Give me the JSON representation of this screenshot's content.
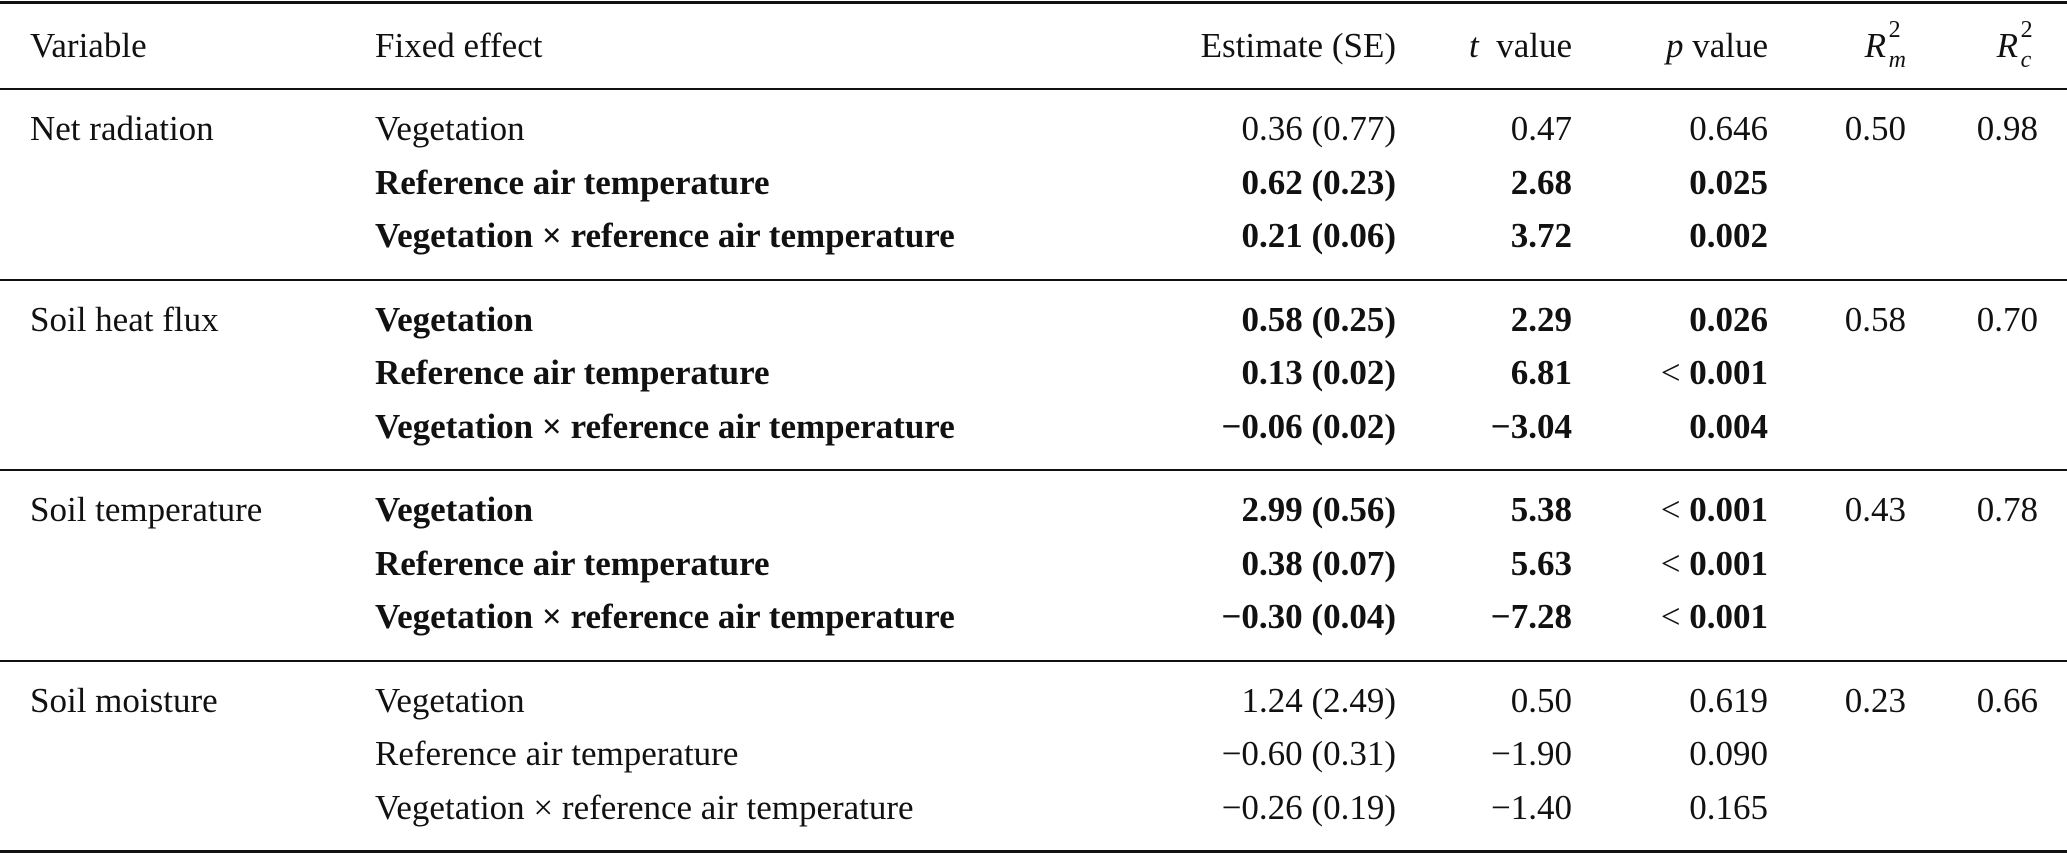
{
  "header": {
    "variable": "Variable",
    "fixed_effect": "Fixed effect",
    "estimate": "Estimate (SE)",
    "t_symbol": "t",
    "t_label": "value",
    "p_symbol": "p",
    "p_label": "value",
    "rm_base": "R",
    "rm_sup": "2",
    "rm_sub": "m",
    "rc_base": "R",
    "rc_sup": "2",
    "rc_sub": "c"
  },
  "groups": [
    {
      "variable": "Net radiation",
      "rm": "0.50",
      "rc": "0.98",
      "rows": [
        {
          "effect": "Vegetation",
          "estimate": "0.36 (0.77)",
          "t": "0.47",
          "p_prefix": "",
          "p": "0.646",
          "bold": false
        },
        {
          "effect": "Reference air temperature",
          "estimate": "0.62 (0.23)",
          "t": "2.68",
          "p_prefix": "",
          "p": "0.025",
          "bold": true
        },
        {
          "effect": "Vegetation × reference air temperature",
          "estimate": "0.21 (0.06)",
          "t": "3.72",
          "p_prefix": "",
          "p": "0.002",
          "bold": true
        }
      ]
    },
    {
      "variable": "Soil heat flux",
      "rm": "0.58",
      "rc": "0.70",
      "rows": [
        {
          "effect": "Vegetation",
          "estimate": "0.58 (0.25)",
          "t": "2.29",
          "p_prefix": "",
          "p": "0.026",
          "bold": true
        },
        {
          "effect": "Reference air temperature",
          "estimate": "0.13 (0.02)",
          "t": "6.81",
          "p_prefix": "< ",
          "p": "0.001",
          "bold": true
        },
        {
          "effect": "Vegetation × reference air temperature",
          "estimate": "−0.06 (0.02)",
          "t": "−3.04",
          "p_prefix": "",
          "p": "0.004",
          "bold": true
        }
      ]
    },
    {
      "variable": "Soil temperature",
      "rm": "0.43",
      "rc": "0.78",
      "rows": [
        {
          "effect": "Vegetation",
          "estimate": "2.99 (0.56)",
          "t": "5.38",
          "p_prefix": "< ",
          "p": "0.001",
          "bold": true
        },
        {
          "effect": "Reference air temperature",
          "estimate": "0.38 (0.07)",
          "t": "5.63",
          "p_prefix": "< ",
          "p": "0.001",
          "bold": true
        },
        {
          "effect": "Vegetation × reference air temperature",
          "estimate": "−0.30 (0.04)",
          "t": "−7.28",
          "p_prefix": "< ",
          "p": "0.001",
          "bold": true
        }
      ]
    },
    {
      "variable": "Soil moisture",
      "rm": "0.23",
      "rc": "0.66",
      "rows": [
        {
          "effect": "Vegetation",
          "estimate": "1.24 (2.49)",
          "t": "0.50",
          "p_prefix": "",
          "p": "0.619",
          "bold": false
        },
        {
          "effect": "Reference air temperature",
          "estimate": "−0.60 (0.31)",
          "t": "−1.90",
          "p_prefix": "",
          "p": "0.090",
          "bold": false
        },
        {
          "effect": "Vegetation × reference air temperature",
          "estimate": "−0.26 (0.19)",
          "t": "−1.40",
          "p_prefix": "",
          "p": "0.165",
          "bold": false
        }
      ]
    }
  ]
}
